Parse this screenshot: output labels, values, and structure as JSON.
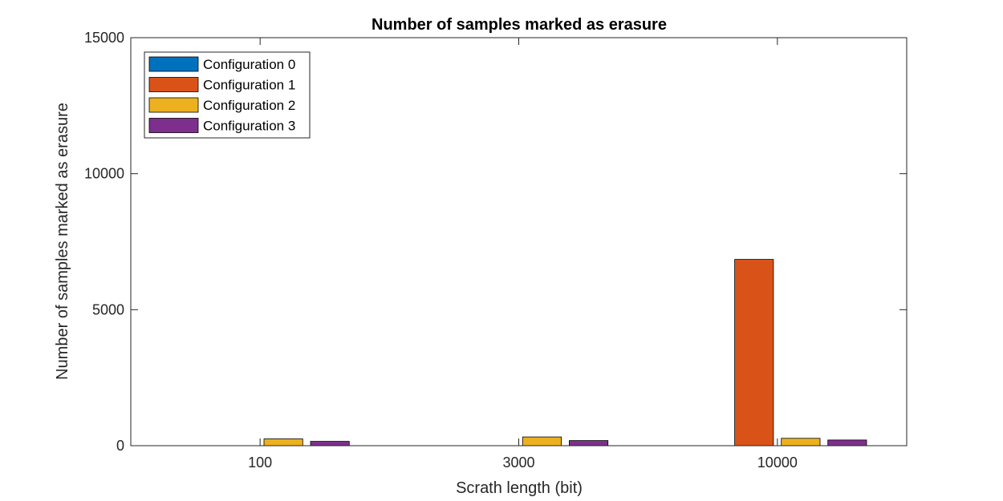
{
  "chart_data": {
    "type": "bar",
    "title": "Number of samples marked as erasure",
    "xlabel": "Scrath length (bit)",
    "ylabel": "Number of samples marked as erasure",
    "categories": [
      "100",
      "3000",
      "10000"
    ],
    "series": [
      {
        "name": "Configuration 0",
        "color": "#0072BD",
        "values": [
          0,
          0,
          0
        ]
      },
      {
        "name": "Configuration 1",
        "color": "#D95319",
        "values": [
          0,
          0,
          6850
        ]
      },
      {
        "name": "Configuration 2",
        "color": "#EDB120",
        "values": [
          250,
          320,
          270
        ]
      },
      {
        "name": "Configuration 3",
        "color": "#7E2F8E",
        "values": [
          160,
          190,
          210
        ]
      }
    ],
    "ylim": [
      0,
      15000
    ],
    "yticks": [
      0,
      5000,
      10000,
      15000
    ],
    "ytick_labels": [
      "0",
      "5000",
      "10000",
      "15000"
    ],
    "grid": false,
    "legend_position": "top-left"
  }
}
